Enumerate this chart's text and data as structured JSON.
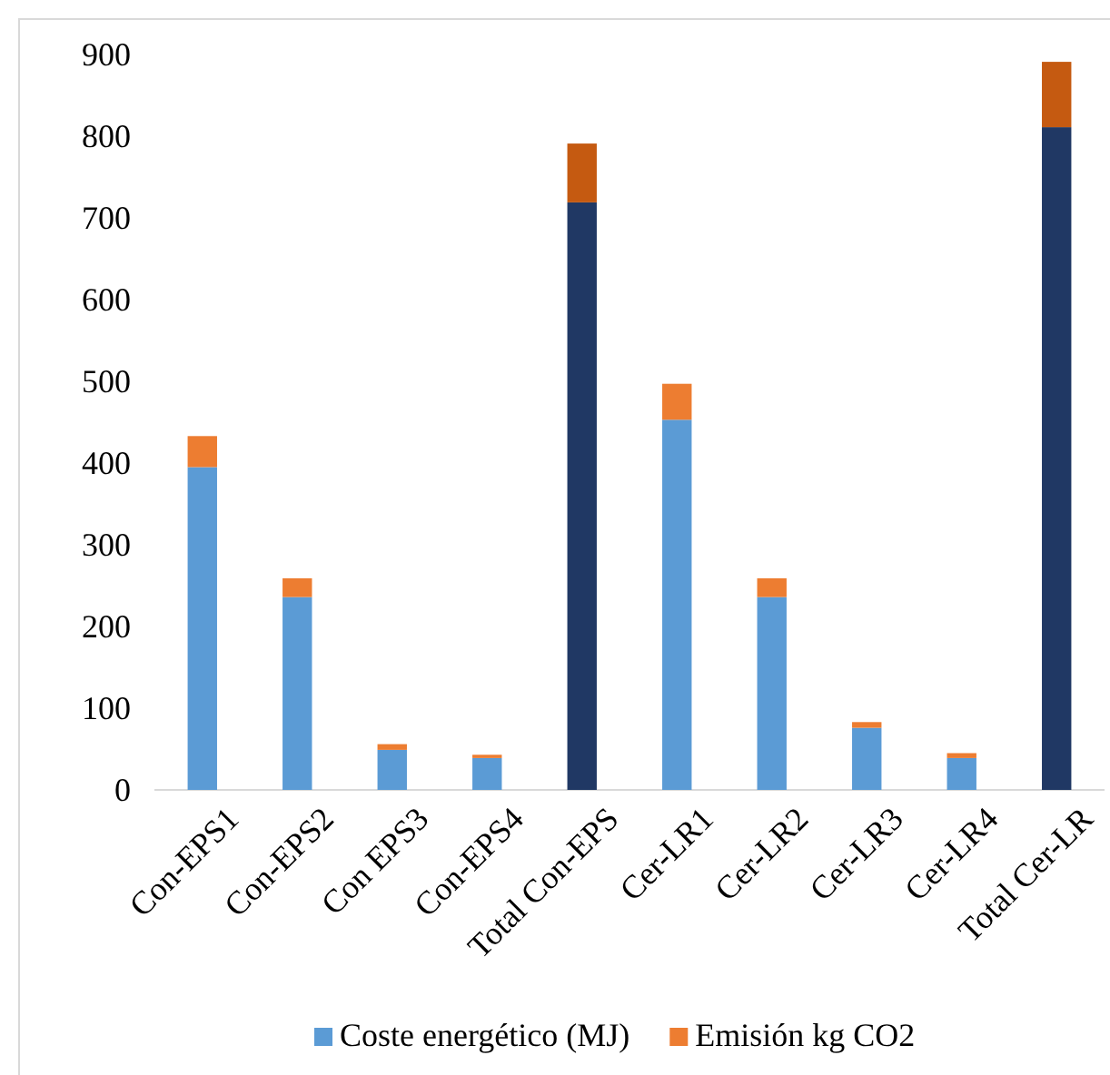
{
  "chart_data": {
    "type": "bar",
    "stacked": true,
    "categories": [
      "Con-EPS1",
      "Con-EPS2",
      "Con EPS3",
      "Con-EPS4",
      "Total Con-EPS",
      "Cer-LR1",
      "Cer-LR2",
      "Cer-LR3",
      "Cer-LR4",
      "Total Cer-LR"
    ],
    "series": [
      {
        "name": "Coste energético (MJ)",
        "color": "#5b9bd5",
        "colors": [
          "#5b9bd5",
          "#5b9bd5",
          "#5b9bd5",
          "#5b9bd5",
          "#203864",
          "#5b9bd5",
          "#5b9bd5",
          "#5b9bd5",
          "#5b9bd5",
          "#203864"
        ],
        "values": [
          395,
          236,
          49,
          39,
          719,
          453,
          236,
          76,
          39,
          811
        ]
      },
      {
        "name": "Emisión kg CO2",
        "color": "#ed7d31",
        "colors": [
          "#ed7d31",
          "#ed7d31",
          "#ed7d31",
          "#ed7d31",
          "#c55a11",
          "#ed7d31",
          "#ed7d31",
          "#ed7d31",
          "#ed7d31",
          "#c55a11"
        ],
        "values": [
          38,
          23,
          7,
          4,
          72,
          44,
          23,
          7,
          6,
          80
        ]
      }
    ],
    "ylim": [
      0,
      900
    ],
    "yticks": [
      0,
      100,
      200,
      300,
      400,
      500,
      600,
      700,
      800,
      900
    ],
    "grid": false,
    "legend": "bottom"
  }
}
